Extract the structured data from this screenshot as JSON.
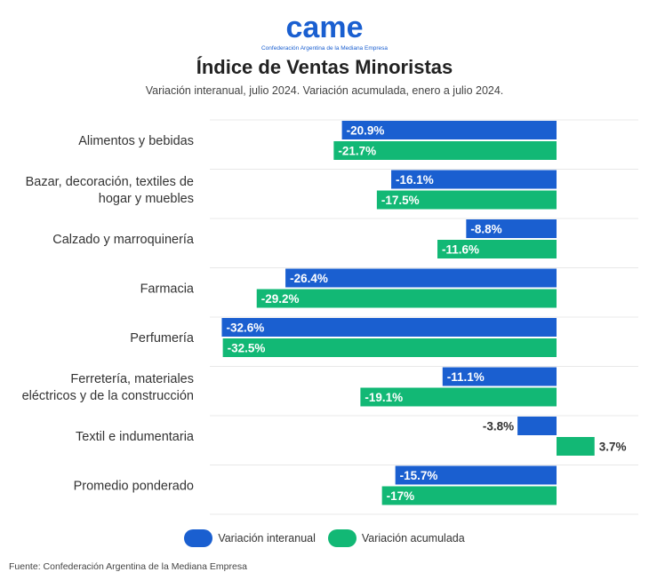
{
  "brand": {
    "logo_text": "came",
    "logo_subtext": "Confederación Argentina de la Mediana Empresa"
  },
  "title": "Índice de Ventas Minoristas",
  "subtitle": "Variación interanual, julio 2024. Variación acumulada, enero a julio 2024.",
  "colors": {
    "interanual": "#1a5fd0",
    "acumulada": "#12b875",
    "brand": "#1a5fd0"
  },
  "chart_data": {
    "type": "bar",
    "orientation": "horizontal",
    "categories": [
      "Alimentos y bebidas",
      "Bazar, decoración, textiles de hogar y muebles",
      "Calzado y marroquinería",
      "Farmacia",
      "Perfumería",
      "Ferretería, materiales eléctricos y de la construcción",
      "Textil e indumentaria",
      "Promedio ponderado"
    ],
    "series": [
      {
        "name": "Variación interanual",
        "values": [
          -20.9,
          -16.1,
          -8.8,
          -26.4,
          -32.6,
          -11.1,
          -3.8,
          -15.7
        ],
        "labels": [
          "-20.9%",
          "-16.1%",
          "-8.8%",
          "-26.4%",
          "-32.6%",
          "-11.1%",
          "-3.8%",
          "-15.7%"
        ]
      },
      {
        "name": "Variación acumulada",
        "values": [
          -21.7,
          -17.5,
          -11.6,
          -29.2,
          -32.5,
          -19.1,
          3.7,
          -17.0
        ],
        "labels": [
          "-21.7%",
          "-17.5%",
          "-11.6%",
          "-29.2%",
          "-32.5%",
          "-19.1%",
          "3.7%",
          "-17%"
        ]
      }
    ],
    "xlim": [
      -32.6,
      3.7
    ],
    "grid": true,
    "legend_position": "bottom"
  },
  "source": "Fuente: Confederación Argentina de la Mediana Empresa"
}
